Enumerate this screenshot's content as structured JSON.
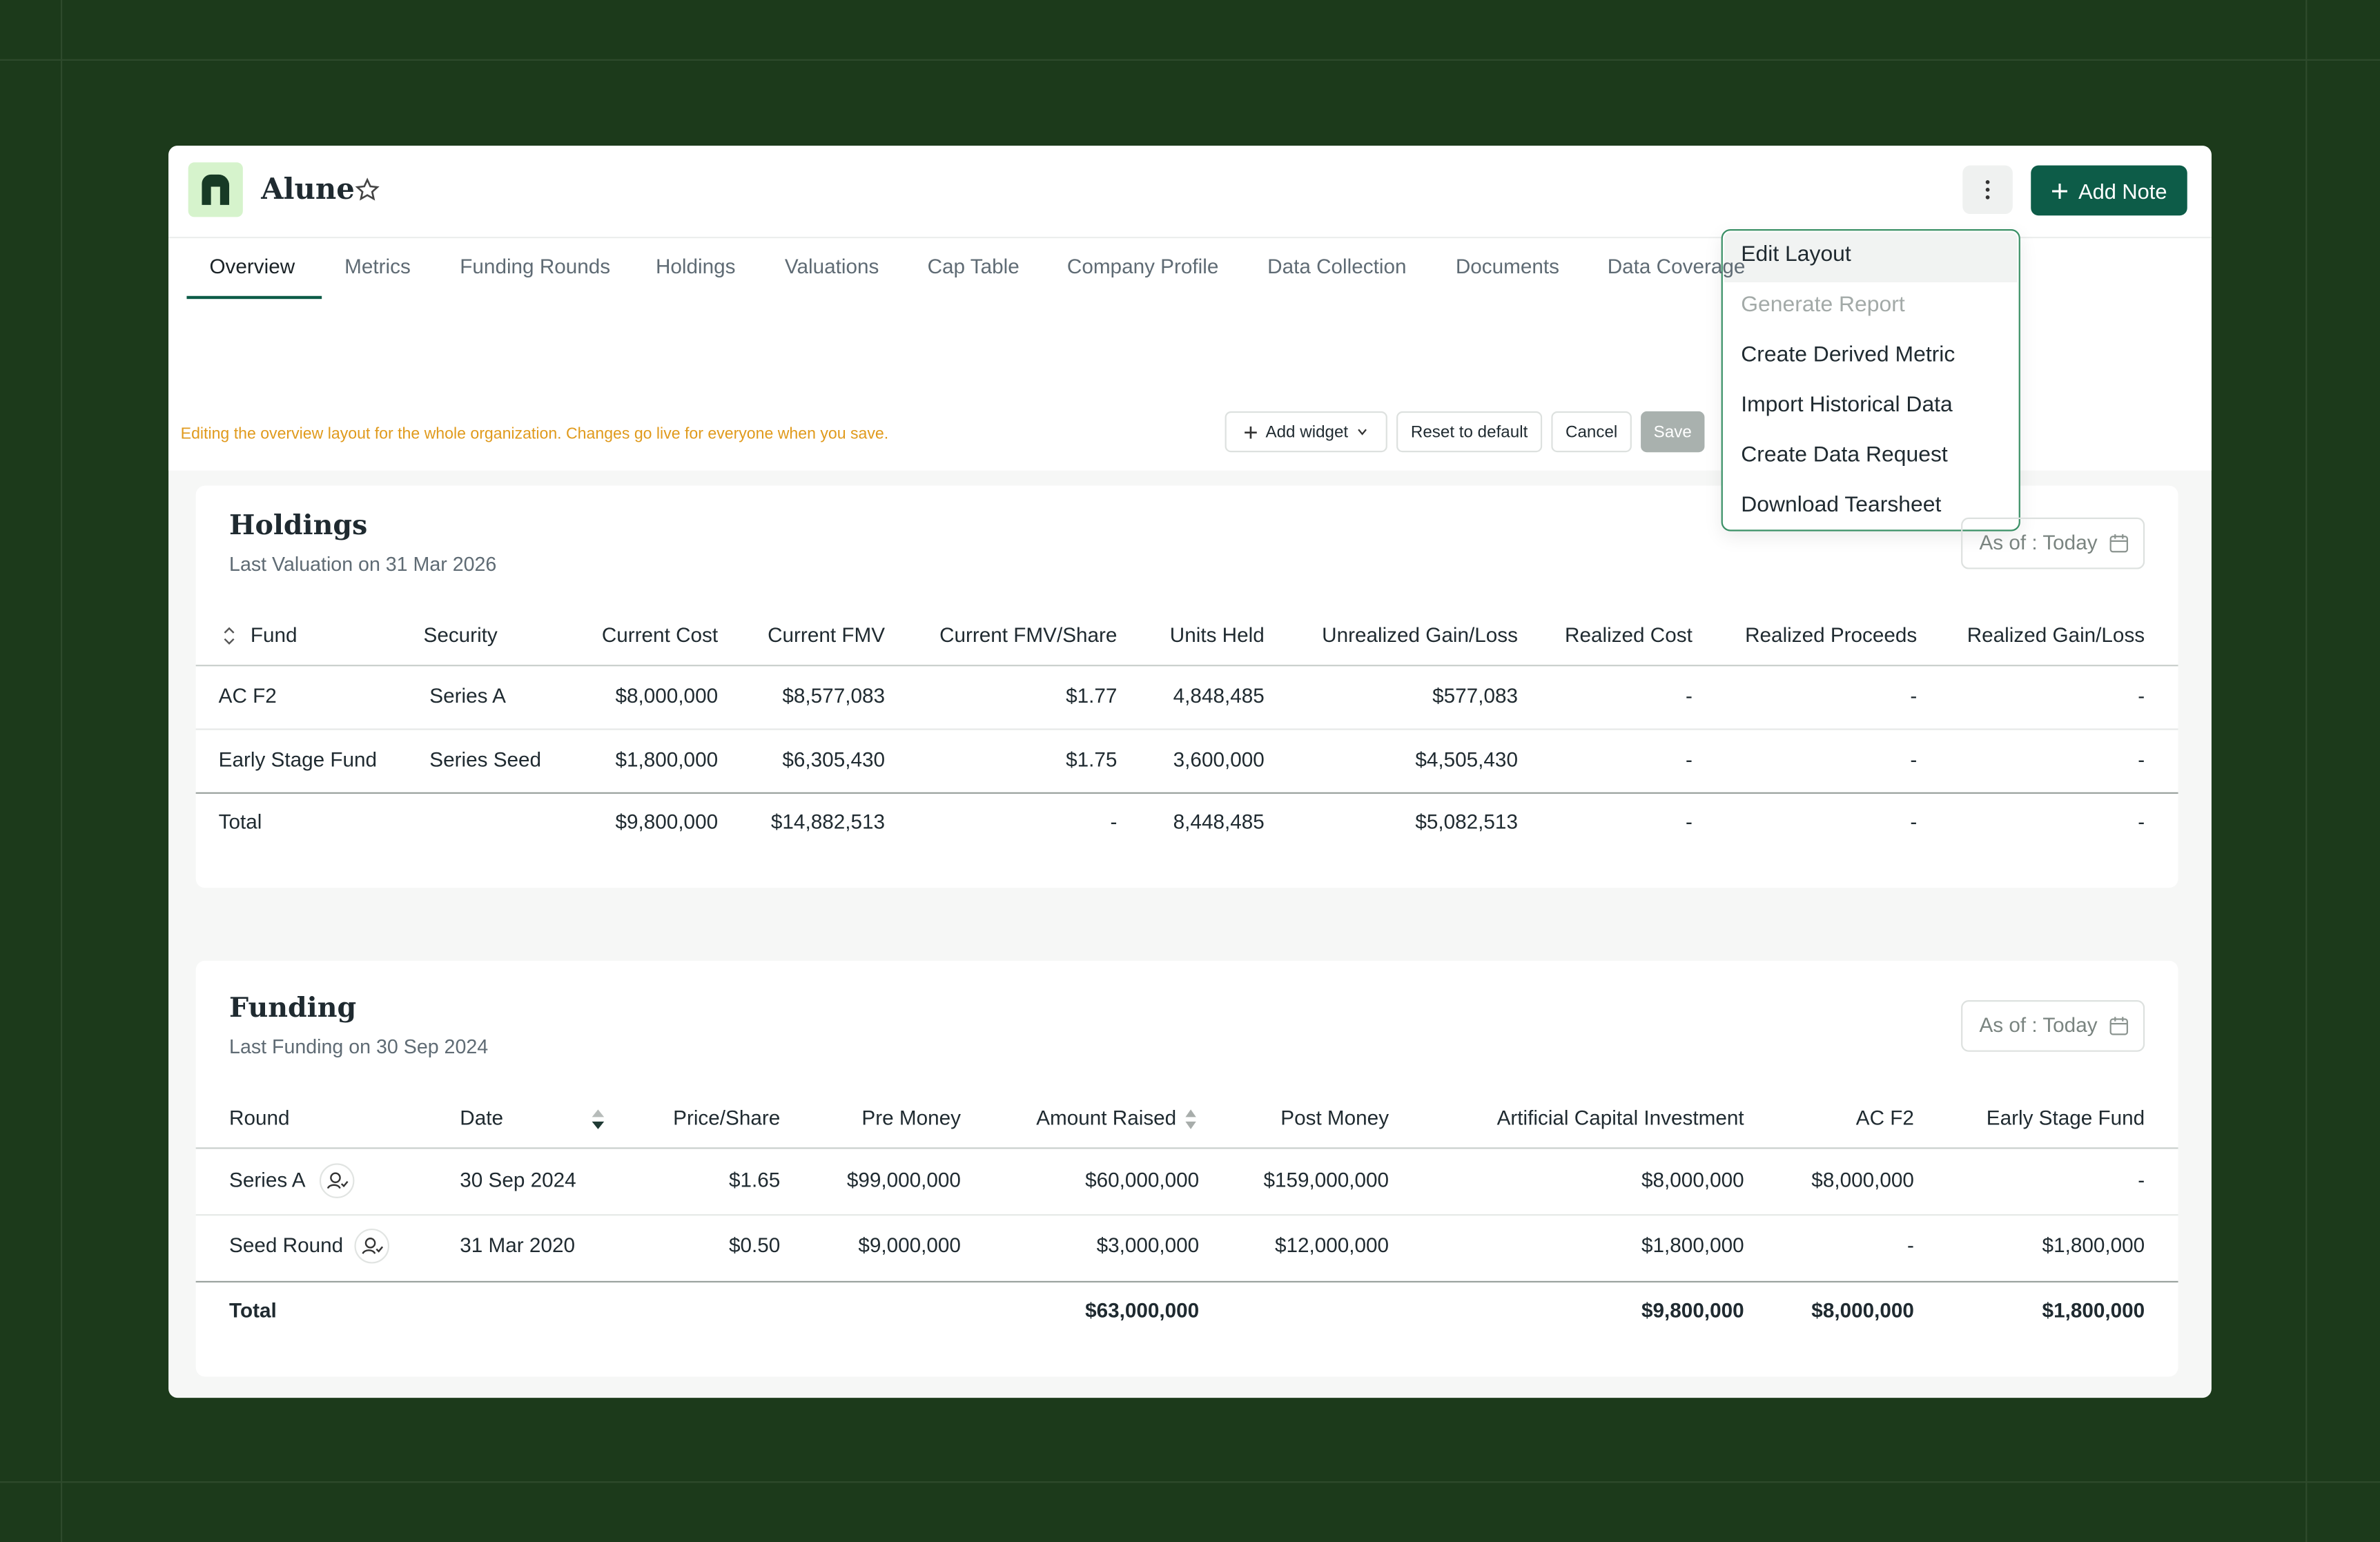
{
  "header": {
    "company": "Alune",
    "add_note": "Add Note"
  },
  "tabs": [
    "Overview",
    "Metrics",
    "Funding Rounds",
    "Holdings",
    "Valuations",
    "Cap Table",
    "Company Profile",
    "Data Collection",
    "Documents",
    "Data Coverage"
  ],
  "menu": [
    "Edit Layout",
    "Generate Report",
    "Create Derived Metric",
    "Import Historical Data",
    "Create Data Request",
    "Download Tearsheet"
  ],
  "edit_bar": {
    "message": "Editing the overview layout for the whole organization. Changes go live for everyone when you save.",
    "add_widget": "Add widget",
    "reset": "Reset to default",
    "cancel": "Cancel",
    "save": "Save"
  },
  "holdings": {
    "title": "Holdings",
    "subtitle": "Last Valuation on 31 Mar 2026",
    "as_of": "As of : Today",
    "columns": [
      "Fund",
      "Security",
      "Current Cost",
      "Current FMV",
      "Current FMV/Share",
      "Units Held",
      "Unrealized Gain/Loss",
      "Realized Cost",
      "Realized Proceeds",
      "Realized Gain/Loss"
    ],
    "rows": [
      [
        "AC F2",
        "Series A",
        "$8,000,000",
        "$8,577,083",
        "$1.77",
        "4,848,485",
        "$577,083",
        "-",
        "-",
        "-"
      ],
      [
        "Early Stage Fund",
        "Series Seed",
        "$1,800,000",
        "$6,305,430",
        "$1.75",
        "3,600,000",
        "$4,505,430",
        "-",
        "-",
        "-"
      ],
      [
        "Total",
        "",
        "$9,800,000",
        "$14,882,513",
        "-",
        "8,448,485",
        "$5,082,513",
        "-",
        "-",
        "-"
      ]
    ]
  },
  "funding": {
    "title": "Funding",
    "subtitle": "Last Funding on 30 Sep 2024",
    "as_of": "As of : Today",
    "columns": [
      "Round",
      "Date",
      "Price/Share",
      "Pre Money",
      "Amount Raised",
      "Post Money",
      "Artificial Capital Investment",
      "AC F2",
      "Early Stage Fund"
    ],
    "rows": [
      [
        "Series A",
        "30 Sep 2024",
        "$1.65",
        "$99,000,000",
        "$60,000,000",
        "$159,000,000",
        "$8,000,000",
        "$8,000,000",
        "-"
      ],
      [
        "Seed Round",
        "31 Mar 2020",
        "$0.50",
        "$9,000,000",
        "$3,000,000",
        "$12,000,000",
        "$1,800,000",
        "-",
        "$1,800,000"
      ],
      [
        "Total",
        "",
        "",
        "",
        "$63,000,000",
        "",
        "$9,800,000",
        "$8,000,000",
        "$1,800,000"
      ]
    ]
  }
}
